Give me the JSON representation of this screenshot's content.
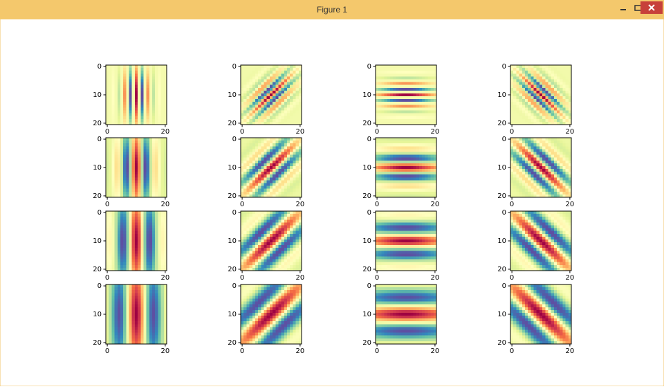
{
  "window": {
    "title": "Figure 1"
  },
  "axes": {
    "xticks": [
      0,
      20
    ],
    "yticks": [
      0,
      10,
      20
    ],
    "xlim": [
      -0.5,
      20.5
    ],
    "ylim": [
      20.5,
      -0.5
    ]
  }
}
